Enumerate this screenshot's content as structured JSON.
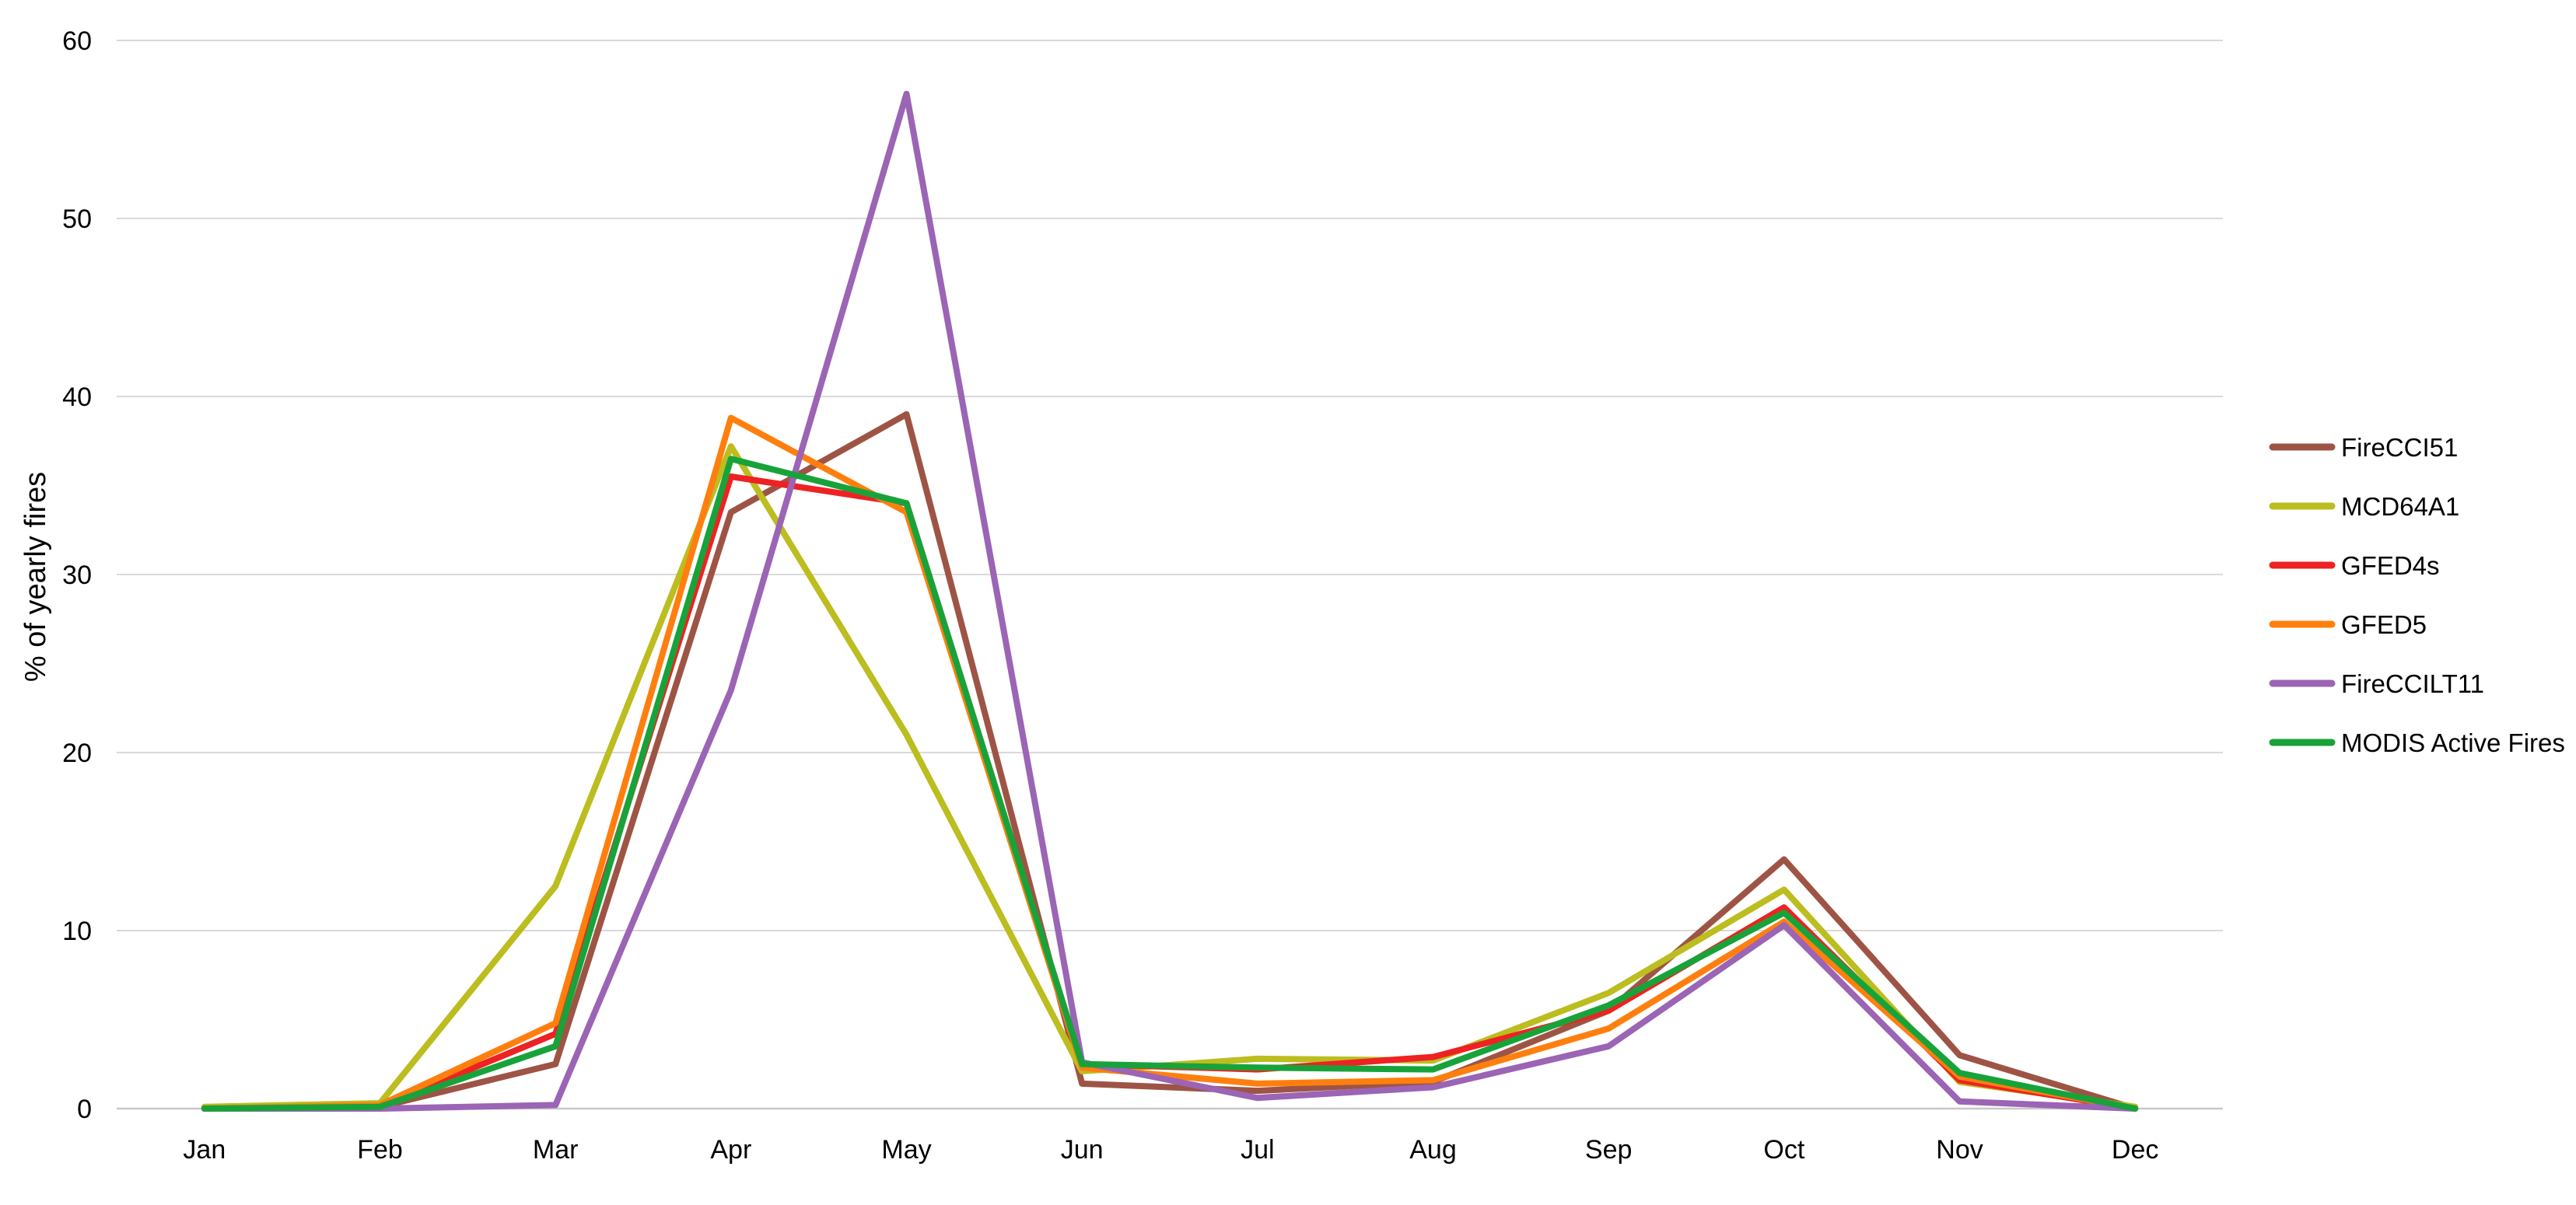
{
  "chart_data": {
    "type": "line",
    "title": "",
    "xlabel": "",
    "ylabel": "% of yearly fires",
    "categories": [
      "Jan",
      "Feb",
      "Mar",
      "Apr",
      "May",
      "Jun",
      "Jul",
      "Aug",
      "Sep",
      "Oct",
      "Nov",
      "Dec"
    ],
    "ylim": [
      0,
      60
    ],
    "yticks": [
      0,
      10,
      20,
      30,
      40,
      50,
      60
    ],
    "grid": true,
    "legend_position": "right",
    "series": [
      {
        "name": "FireCCI51",
        "color": "#9E5445",
        "values": [
          0.0,
          0.1,
          2.5,
          33.5,
          39.0,
          1.4,
          1.0,
          1.5,
          5.5,
          14.0,
          3.0,
          0.0
        ]
      },
      {
        "name": "MCD64A1",
        "color": "#BCBD1F",
        "values": [
          0.1,
          0.3,
          12.5,
          37.2,
          21.0,
          2.1,
          2.8,
          2.7,
          6.5,
          12.3,
          1.5,
          0.1
        ]
      },
      {
        "name": "GFED4s",
        "color": "#EE2222",
        "values": [
          0.0,
          0.1,
          4.2,
          35.5,
          34.0,
          2.5,
          2.2,
          2.9,
          5.5,
          11.3,
          1.6,
          0.0
        ]
      },
      {
        "name": "GFED5",
        "color": "#FF7F0E",
        "values": [
          0.0,
          0.2,
          4.8,
          38.8,
          33.5,
          2.3,
          1.4,
          1.6,
          4.5,
          10.5,
          1.8,
          0.0
        ]
      },
      {
        "name": "FireCCILT11",
        "color": "#9B64B5",
        "values": [
          0.0,
          0.0,
          0.2,
          23.5,
          57.0,
          2.6,
          0.6,
          1.2,
          3.5,
          10.3,
          0.4,
          0.0
        ]
      },
      {
        "name": "MODIS Active Fires",
        "color": "#18A33A",
        "values": [
          0.0,
          0.1,
          3.5,
          36.5,
          34.0,
          2.5,
          2.3,
          2.2,
          5.8,
          11.0,
          2.0,
          0.0
        ]
      }
    ]
  }
}
